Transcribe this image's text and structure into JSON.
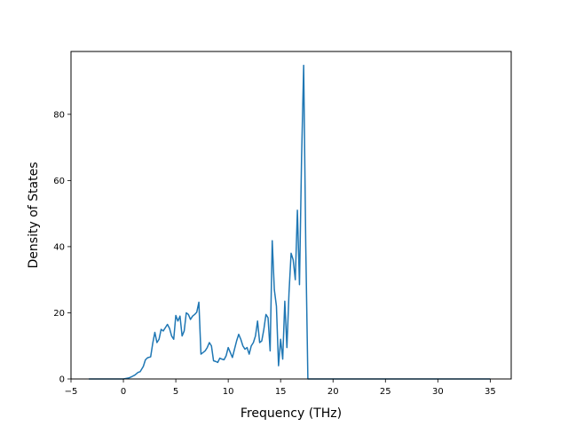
{
  "chart_data": {
    "type": "line",
    "title": "",
    "xlabel": "Frequency (THz)",
    "ylabel": "Density of States",
    "xlim": [
      -5,
      37
    ],
    "ylim": [
      0,
      99
    ],
    "xticks": [
      -5,
      0,
      5,
      10,
      15,
      20,
      25,
      30,
      35
    ],
    "yticks": [
      0,
      20,
      40,
      60,
      80
    ],
    "grid": false,
    "legend": "none",
    "series": [
      {
        "color": "#1f77b4",
        "x": [
          -3.3,
          -2.5,
          -1.5,
          -0.5,
          0.0,
          0.5,
          0.8,
          1.1,
          1.4,
          1.6,
          1.9,
          2.1,
          2.3,
          2.6,
          2.8,
          3.0,
          3.2,
          3.4,
          3.6,
          3.8,
          4.0,
          4.2,
          4.4,
          4.6,
          4.8,
          5.0,
          5.2,
          5.4,
          5.6,
          5.8,
          6.0,
          6.2,
          6.4,
          6.6,
          6.8,
          7.0,
          7.2,
          7.4,
          7.6,
          7.8,
          8.0,
          8.2,
          8.4,
          8.6,
          8.8,
          9.0,
          9.2,
          9.4,
          9.6,
          9.8,
          10.0,
          10.2,
          10.4,
          10.6,
          10.8,
          11.0,
          11.2,
          11.4,
          11.6,
          11.8,
          12.0,
          12.2,
          12.4,
          12.6,
          12.8,
          13.0,
          13.2,
          13.4,
          13.6,
          13.8,
          14.0,
          14.2,
          14.4,
          14.6,
          14.8,
          15.0,
          15.2,
          15.4,
          15.6,
          15.8,
          16.0,
          16.2,
          16.4,
          16.6,
          16.8,
          17.0,
          17.2,
          17.4,
          17.6,
          17.8,
          18.0,
          20,
          25,
          30,
          35
        ],
        "y": [
          0,
          0,
          0,
          0,
          0,
          0.3,
          0.7,
          1.2,
          2.0,
          2.2,
          3.8,
          5.8,
          6.4,
          6.7,
          10.8,
          14.1,
          11.0,
          12.0,
          15.0,
          14.5,
          15.5,
          16.5,
          15.3,
          13.0,
          12.0,
          19.2,
          17.5,
          19.0,
          13.0,
          14.5,
          20.0,
          19.5,
          18.0,
          19.0,
          19.5,
          20.2,
          23.2,
          7.5,
          8.0,
          8.5,
          9.5,
          11.0,
          10.0,
          5.5,
          5.3,
          5.0,
          6.3,
          6.0,
          5.8,
          7.0,
          9.5,
          8.0,
          6.5,
          9.0,
          11.5,
          13.5,
          12.0,
          10.0,
          9.0,
          9.5,
          7.5,
          10.0,
          11.0,
          13.0,
          17.5,
          11.0,
          11.5,
          15.0,
          19.5,
          18.5,
          8.5,
          41.8,
          27.0,
          22.0,
          4.0,
          12.0,
          6.0,
          23.5,
          9.5,
          26.0,
          38.0,
          36.0,
          30.0,
          51.0,
          28.5,
          67.0,
          94.8,
          40.0,
          0,
          0,
          0,
          0,
          0,
          0,
          0
        ]
      }
    ]
  }
}
